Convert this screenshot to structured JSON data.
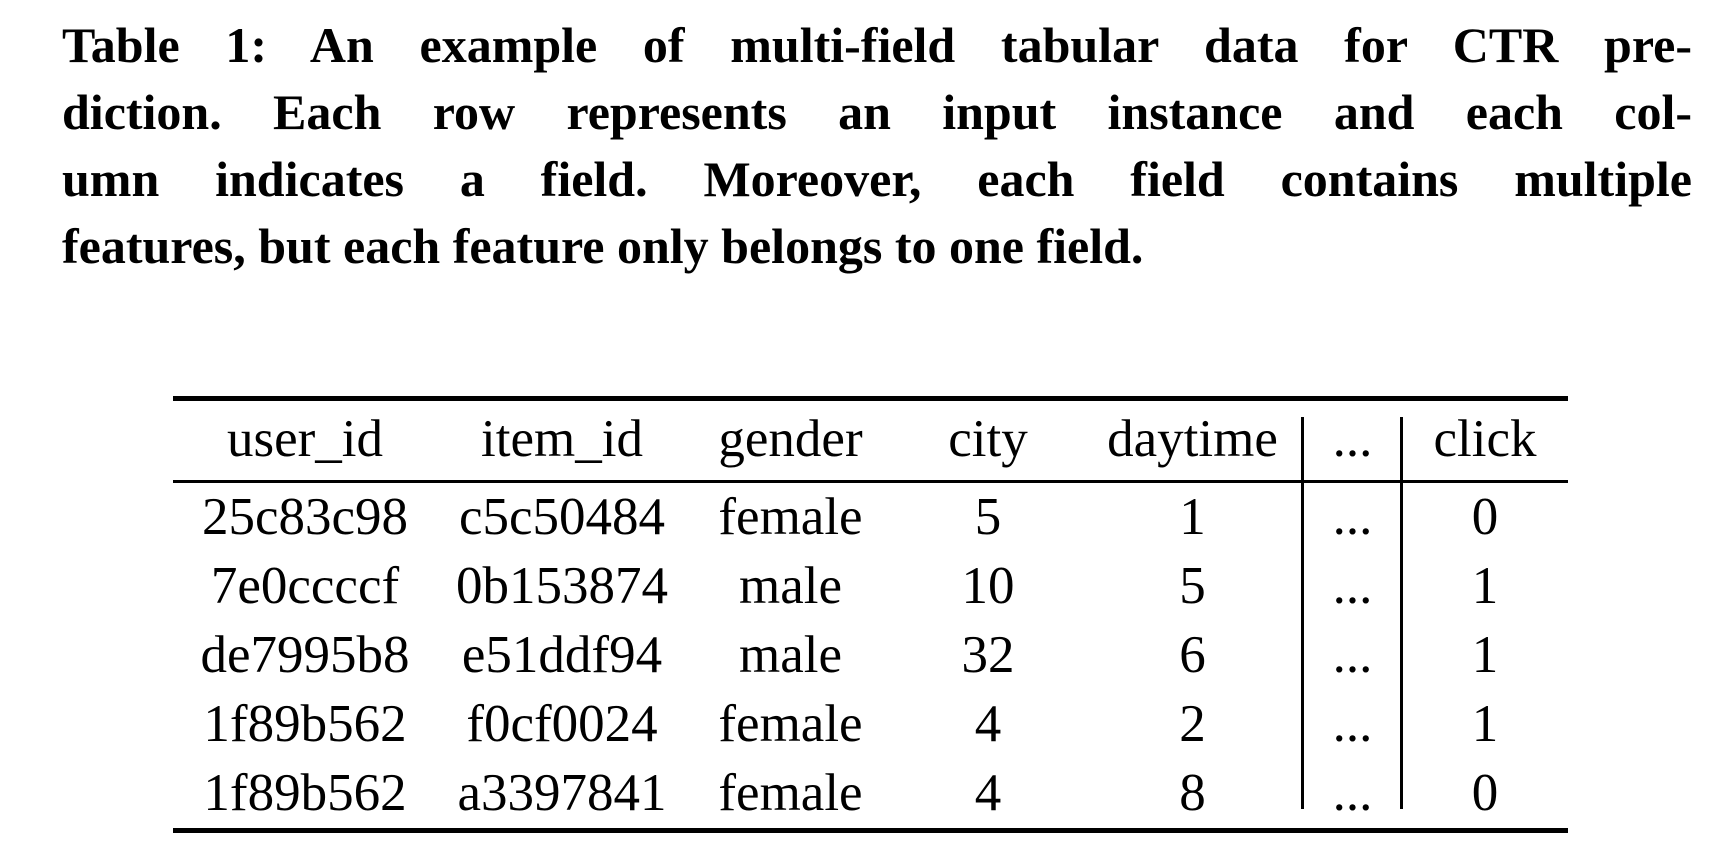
{
  "caption": {
    "label": "Table 1:",
    "lines": [
      "Table 1: An example of multi-field tabular data for CTR pre-",
      "diction. Each row represents an input instance and each col-",
      "umn indicates a field. Moreover, each field contains multiple",
      "features, but each feature only belongs to one field."
    ]
  },
  "table": {
    "columns": [
      "user_id",
      "item_id",
      "gender",
      "city",
      "daytime",
      "...",
      "click"
    ],
    "rows": [
      [
        "25c83c98",
        "c5c50484",
        "female",
        "5",
        "1",
        "...",
        "0"
      ],
      [
        "7e0ccccf",
        "0b153874",
        "male",
        "10",
        "5",
        "...",
        "1"
      ],
      [
        "de7995b8",
        "e51ddf94",
        "male",
        "32",
        "6",
        "...",
        "1"
      ],
      [
        "1f89b562",
        "f0cf0024",
        "female",
        "4",
        "2",
        "...",
        "1"
      ],
      [
        "1f89b562",
        "a3397841",
        "female",
        "4",
        "8",
        "...",
        "0"
      ]
    ]
  },
  "colors": {
    "text": "#000000",
    "background": "#ffffff",
    "rule": "#000000"
  }
}
